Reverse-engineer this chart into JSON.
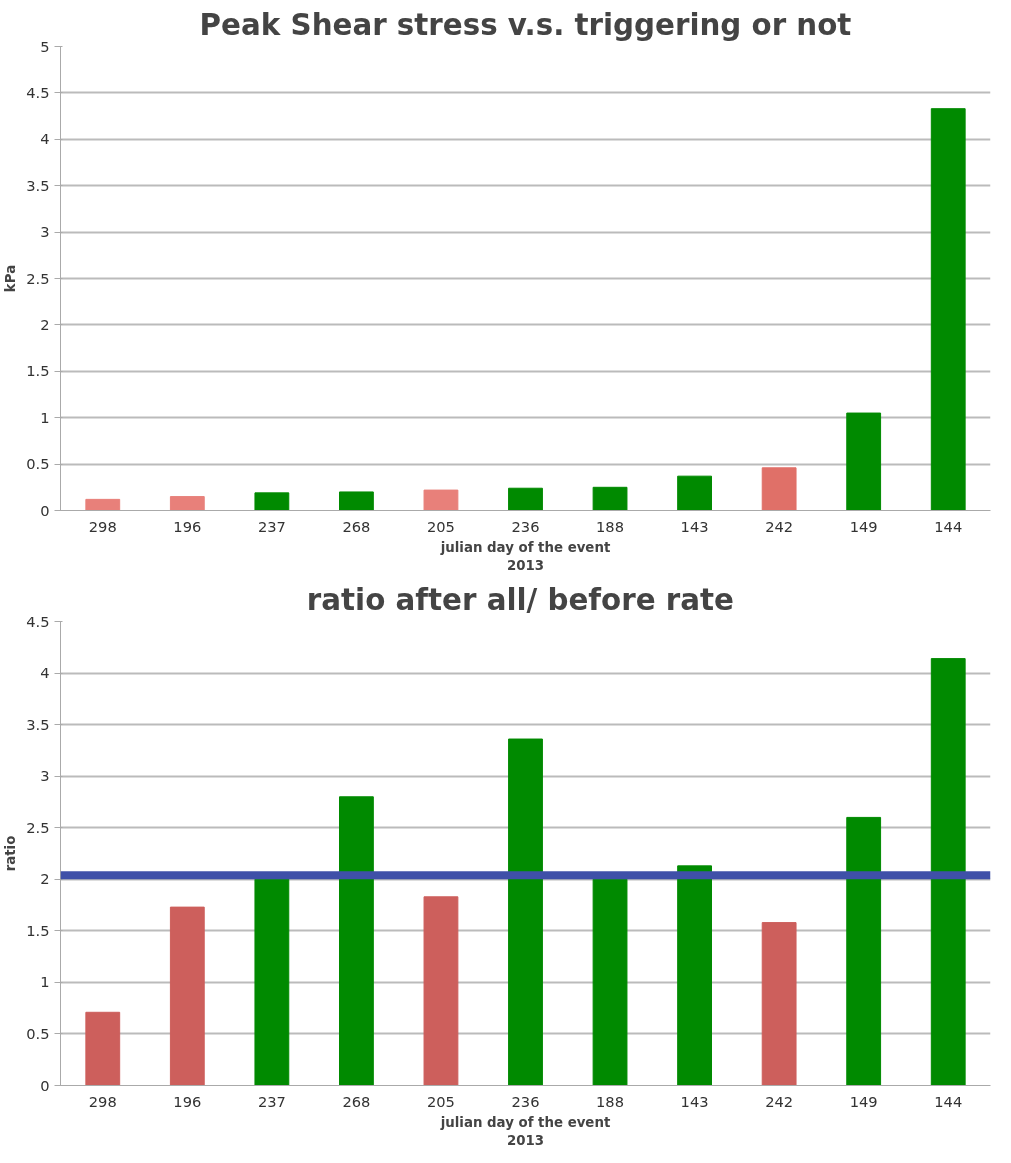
{
  "chart_data": [
    {
      "type": "bar",
      "title": "Peak Shear stress v.s. triggering or not",
      "xlabel": "julian day of the event\n2013",
      "ylabel": "kPa",
      "categories": [
        "298",
        "196",
        "237",
        "268",
        "205",
        "236",
        "188",
        "143",
        "242",
        "149",
        "144"
      ],
      "values": [
        0.12,
        0.15,
        0.19,
        0.2,
        0.22,
        0.24,
        0.25,
        0.37,
        0.46,
        1.05,
        4.33
      ],
      "colors": [
        "#e8807a",
        "#e8807a",
        "#008a00",
        "#008a00",
        "#e8807a",
        "#008a00",
        "#008a00",
        "#008a00",
        "#e07068",
        "#008a00",
        "#008a00"
      ],
      "ylim": [
        0,
        5
      ],
      "yticks": [
        0,
        0.5,
        1,
        1.5,
        2,
        2.5,
        3,
        3.5,
        4,
        4.5,
        5
      ],
      "grid": "y"
    },
    {
      "type": "bar",
      "title": "ratio  after all/ before rate",
      "xlabel": "julian day of the event\n2013",
      "ylabel": "ratio",
      "categories": [
        "298",
        "196",
        "237",
        "268",
        "205",
        "236",
        "188",
        "143",
        "242",
        "149",
        "144"
      ],
      "values": [
        0.71,
        1.73,
        2.0,
        2.8,
        1.83,
        3.36,
        2.0,
        2.13,
        1.58,
        2.6,
        4.14
      ],
      "colors": [
        "#cd5f5c",
        "#cd5f5c",
        "#008a00",
        "#008a00",
        "#cd5f5c",
        "#008a00",
        "#008a00",
        "#008a00",
        "#cd5f5c",
        "#008a00",
        "#008a00"
      ],
      "ylim": [
        0,
        4.5
      ],
      "yticks": [
        0,
        0.5,
        1,
        1.5,
        2,
        2.5,
        3,
        3.5,
        4,
        4.5
      ],
      "grid": "y",
      "ref_lines": [
        {
          "axis": "y",
          "value": 2.04,
          "color": "#3f50a8"
        }
      ]
    }
  ]
}
